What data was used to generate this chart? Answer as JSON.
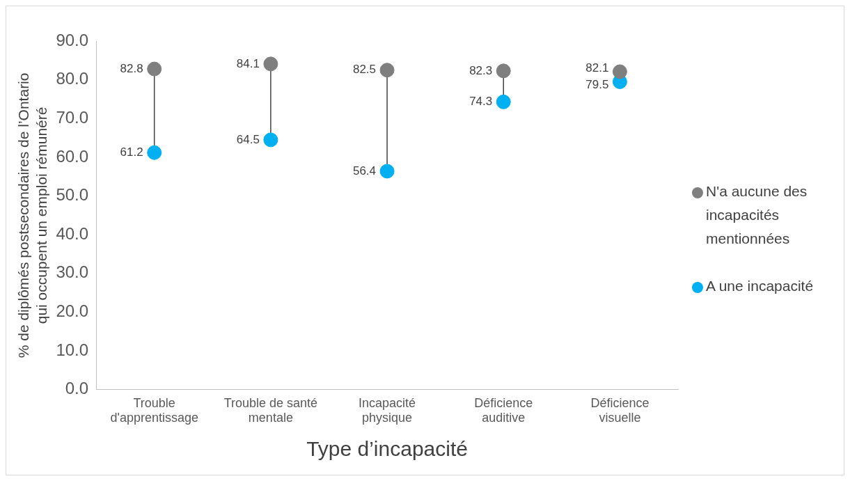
{
  "chart_data": {
    "type": "scatter",
    "xlabel": "Type d’incapacité",
    "ylabel": "% de diplômés postsecondaires de l’Ontario qui occupent un emploi rémunéré",
    "categories": [
      "Trouble d'apprentissage",
      "Trouble de santé mentale",
      "Incapacité physique",
      "Déficience auditive",
      "Déficience visuelle"
    ],
    "series": [
      {
        "name": "N'a aucune des incapacités mentionnées",
        "color": "#7f7f7f",
        "values": [
          82.8,
          84.1,
          82.5,
          82.3,
          82.1
        ]
      },
      {
        "name": "A une incapacité",
        "color": "#00b0f0",
        "values": [
          61.2,
          64.5,
          56.4,
          74.3,
          79.5
        ]
      }
    ],
    "ylim": [
      0,
      90
    ],
    "yticks": [
      {
        "value": 0,
        "label": "0.0"
      },
      {
        "value": 10,
        "label": "10.0"
      },
      {
        "value": 20,
        "label": "20.0"
      },
      {
        "value": 30,
        "label": "30.0"
      },
      {
        "value": 40,
        "label": "40.0"
      },
      {
        "value": 50,
        "label": "50.0"
      },
      {
        "value": 60,
        "label": "60.0"
      },
      {
        "value": 70,
        "label": "70.0"
      },
      {
        "value": 80,
        "label": "80.0"
      },
      {
        "value": 90,
        "label": "90.0"
      }
    ],
    "grid": false,
    "legend": "right",
    "marker": "circle",
    "data_labels": true
  }
}
